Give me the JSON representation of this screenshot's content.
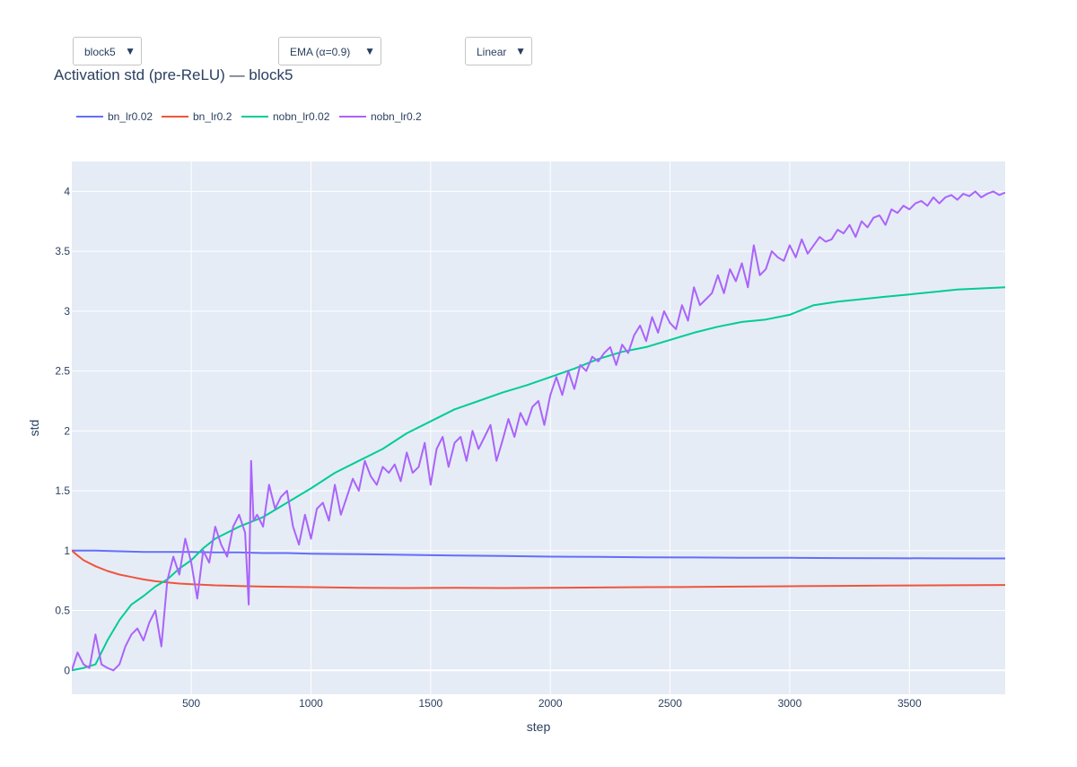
{
  "controls": {
    "block_select": {
      "value": "block5"
    },
    "smoothing_select": {
      "value": "EMA (α=0.9)"
    },
    "scale_select": {
      "value": "Linear"
    },
    "arrow_glyph": "▼"
  },
  "chart_data": {
    "type": "line",
    "title": "Activation std (pre-ReLU) — block5",
    "xlabel": "step",
    "ylabel": "std",
    "xlim": [
      1,
      3900
    ],
    "ylim": [
      -0.2,
      4.25
    ],
    "xticks": [
      500,
      1000,
      1500,
      2000,
      2500,
      3000,
      3500
    ],
    "yticks": [
      0,
      0.5,
      1,
      1.5,
      2,
      2.5,
      3,
      3.5,
      4
    ],
    "ytick_labels": [
      "0",
      "0.5",
      "1",
      "1.5",
      "2",
      "2.5",
      "3",
      "3.5",
      "4"
    ],
    "grid": true,
    "legend_position": "top-left",
    "series": [
      {
        "name": "bn_lr0.02",
        "color": "#636efa",
        "x": [
          1,
          100,
          200,
          300,
          400,
          500,
          600,
          700,
          800,
          900,
          1000,
          1200,
          1400,
          1600,
          1800,
          2000,
          2200,
          2400,
          2600,
          2800,
          3000,
          3200,
          3400,
          3600,
          3800,
          3900
        ],
        "y": [
          1.0,
          1.0,
          0.995,
          0.99,
          0.99,
          0.99,
          0.985,
          0.985,
          0.98,
          0.98,
          0.975,
          0.97,
          0.965,
          0.96,
          0.955,
          0.95,
          0.948,
          0.945,
          0.943,
          0.94,
          0.94,
          0.938,
          0.937,
          0.936,
          0.935,
          0.935
        ]
      },
      {
        "name": "bn_lr0.2",
        "color": "#ef553b",
        "x": [
          1,
          25,
          50,
          100,
          150,
          200,
          250,
          300,
          350,
          400,
          450,
          500,
          600,
          700,
          800,
          1000,
          1200,
          1400,
          1600,
          1800,
          2000,
          2200,
          2400,
          2600,
          2800,
          3000,
          3200,
          3400,
          3600,
          3800,
          3900
        ],
        "y": [
          1.0,
          0.96,
          0.92,
          0.87,
          0.83,
          0.8,
          0.78,
          0.76,
          0.745,
          0.735,
          0.725,
          0.72,
          0.71,
          0.705,
          0.7,
          0.695,
          0.69,
          0.688,
          0.69,
          0.688,
          0.69,
          0.692,
          0.695,
          0.697,
          0.7,
          0.703,
          0.706,
          0.708,
          0.71,
          0.712,
          0.713
        ]
      },
      {
        "name": "nobn_lr0.02",
        "color": "#00cc96",
        "x": [
          1,
          50,
          100,
          150,
          200,
          250,
          300,
          350,
          400,
          450,
          500,
          550,
          600,
          700,
          800,
          900,
          1000,
          1100,
          1200,
          1300,
          1400,
          1500,
          1600,
          1700,
          1800,
          1900,
          2000,
          2100,
          2200,
          2300,
          2400,
          2500,
          2600,
          2700,
          2800,
          2900,
          3000,
          3100,
          3200,
          3300,
          3400,
          3500,
          3600,
          3700,
          3800,
          3900
        ],
        "y": [
          0.0,
          0.02,
          0.05,
          0.25,
          0.42,
          0.55,
          0.62,
          0.7,
          0.76,
          0.85,
          0.92,
          1.02,
          1.1,
          1.2,
          1.28,
          1.4,
          1.52,
          1.65,
          1.75,
          1.85,
          1.98,
          2.08,
          2.18,
          2.25,
          2.32,
          2.38,
          2.45,
          2.52,
          2.6,
          2.66,
          2.7,
          2.76,
          2.82,
          2.87,
          2.91,
          2.93,
          2.97,
          3.05,
          3.08,
          3.1,
          3.12,
          3.14,
          3.16,
          3.18,
          3.19,
          3.2
        ]
      },
      {
        "name": "nobn_lr0.2",
        "color": "#ab63fa",
        "x": [
          1,
          25,
          50,
          75,
          100,
          125,
          150,
          175,
          200,
          225,
          250,
          275,
          300,
          325,
          350,
          375,
          400,
          425,
          450,
          475,
          500,
          525,
          550,
          575,
          600,
          625,
          650,
          675,
          700,
          725,
          740,
          750,
          760,
          775,
          800,
          825,
          850,
          875,
          900,
          925,
          950,
          975,
          1000,
          1025,
          1050,
          1075,
          1100,
          1125,
          1150,
          1175,
          1200,
          1225,
          1250,
          1275,
          1300,
          1325,
          1350,
          1375,
          1400,
          1425,
          1450,
          1475,
          1500,
          1525,
          1550,
          1575,
          1600,
          1625,
          1650,
          1675,
          1700,
          1725,
          1750,
          1775,
          1800,
          1825,
          1850,
          1875,
          1900,
          1925,
          1950,
          1975,
          2000,
          2025,
          2050,
          2075,
          2100,
          2125,
          2150,
          2175,
          2200,
          2225,
          2250,
          2275,
          2300,
          2325,
          2350,
          2375,
          2400,
          2425,
          2450,
          2475,
          2500,
          2525,
          2550,
          2575,
          2600,
          2625,
          2650,
          2675,
          2700,
          2725,
          2750,
          2775,
          2800,
          2825,
          2850,
          2875,
          2900,
          2925,
          2950,
          2975,
          3000,
          3025,
          3050,
          3075,
          3100,
          3125,
          3150,
          3175,
          3200,
          3225,
          3250,
          3275,
          3300,
          3325,
          3350,
          3375,
          3400,
          3425,
          3450,
          3475,
          3500,
          3525,
          3550,
          3575,
          3600,
          3625,
          3650,
          3675,
          3700,
          3725,
          3750,
          3775,
          3800,
          3825,
          3850,
          3875,
          3900
        ],
        "y": [
          0.0,
          0.15,
          0.05,
          0.02,
          0.3,
          0.05,
          0.02,
          0.0,
          0.05,
          0.2,
          0.3,
          0.35,
          0.25,
          0.4,
          0.5,
          0.2,
          0.75,
          0.95,
          0.8,
          1.1,
          0.9,
          0.6,
          1.0,
          0.9,
          1.2,
          1.05,
          0.95,
          1.2,
          1.3,
          1.15,
          0.55,
          1.75,
          1.25,
          1.3,
          1.2,
          1.55,
          1.35,
          1.45,
          1.5,
          1.2,
          1.05,
          1.3,
          1.1,
          1.35,
          1.4,
          1.25,
          1.55,
          1.3,
          1.45,
          1.6,
          1.5,
          1.75,
          1.62,
          1.55,
          1.7,
          1.65,
          1.72,
          1.58,
          1.82,
          1.65,
          1.7,
          1.9,
          1.55,
          1.85,
          1.95,
          1.7,
          1.9,
          1.95,
          1.75,
          2.0,
          1.85,
          1.95,
          2.05,
          1.75,
          1.92,
          2.1,
          1.95,
          2.15,
          2.05,
          2.2,
          2.25,
          2.05,
          2.3,
          2.45,
          2.3,
          2.5,
          2.35,
          2.55,
          2.5,
          2.62,
          2.58,
          2.65,
          2.7,
          2.55,
          2.72,
          2.65,
          2.8,
          2.88,
          2.75,
          2.95,
          2.82,
          3.0,
          2.9,
          2.85,
          3.05,
          2.92,
          3.2,
          3.05,
          3.1,
          3.15,
          3.3,
          3.15,
          3.35,
          3.25,
          3.4,
          3.2,
          3.55,
          3.3,
          3.35,
          3.5,
          3.45,
          3.42,
          3.55,
          3.45,
          3.6,
          3.48,
          3.55,
          3.62,
          3.58,
          3.6,
          3.68,
          3.65,
          3.72,
          3.62,
          3.75,
          3.7,
          3.78,
          3.8,
          3.72,
          3.85,
          3.82,
          3.88,
          3.85,
          3.9,
          3.92,
          3.88,
          3.95,
          3.9,
          3.95,
          3.97,
          3.93,
          3.98,
          3.96,
          4.0,
          3.95,
          3.98,
          4.0,
          3.97,
          3.99
        ]
      }
    ]
  }
}
